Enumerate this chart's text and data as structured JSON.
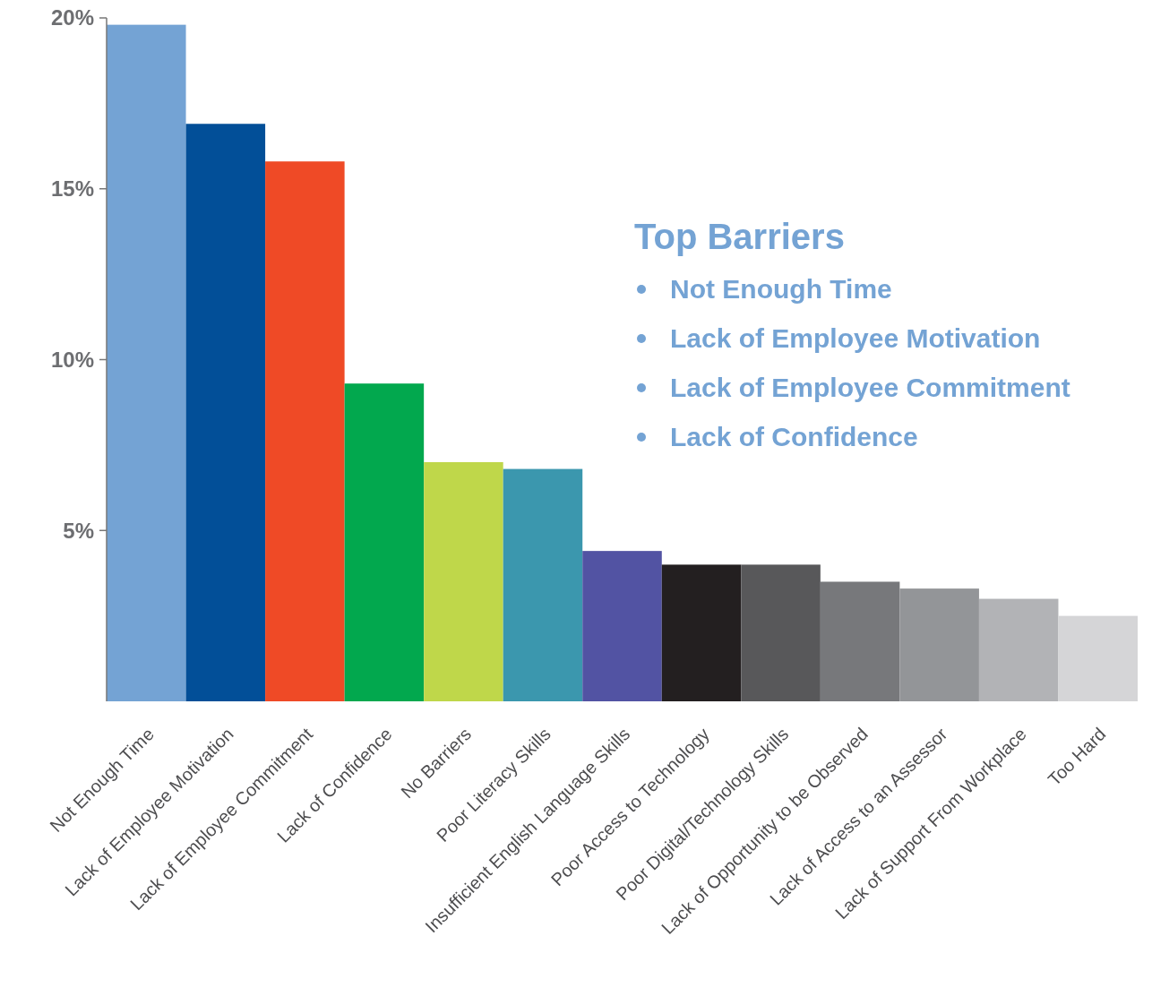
{
  "chart_data": {
    "type": "bar",
    "categories": [
      "Not Enough Time",
      "Lack of Employee Motivation",
      "Lack of Employee Commitment",
      "Lack of Confidence",
      "No Barriers",
      "Poor Literacy Skills",
      "Insufficient English Language Skills",
      "Poor Access to Technology",
      "Poor Digital/Technology Skills",
      "Lack of Opportunity to be Observed",
      "Lack of Access to an Assessor",
      "Lack of Support From Workplace",
      "Too Hard"
    ],
    "values": [
      19.8,
      16.9,
      15.8,
      9.3,
      7.0,
      6.8,
      4.4,
      4.0,
      4.0,
      3.5,
      3.3,
      3.0,
      2.5
    ],
    "colors": [
      "#74a3d4",
      "#024f98",
      "#ef4a26",
      "#02a84e",
      "#bfd74a",
      "#3b97ae",
      "#5253a3",
      "#231f20",
      "#58585a",
      "#77787b",
      "#939598",
      "#b2b3b6",
      "#d5d5d7"
    ],
    "ylim": [
      0,
      20
    ],
    "yticks": [
      {
        "value": 5,
        "label": "5%"
      },
      {
        "value": 10,
        "label": "10%"
      },
      {
        "value": 15,
        "label": "15%"
      },
      {
        "value": 20,
        "label": "20%"
      }
    ],
    "annotations": [
      "Top Barriers",
      "Not Enough Time",
      "Lack of Employee Motivation",
      "Lack of Employee Commitment",
      "Lack of Confidence"
    ],
    "grid": false
  }
}
